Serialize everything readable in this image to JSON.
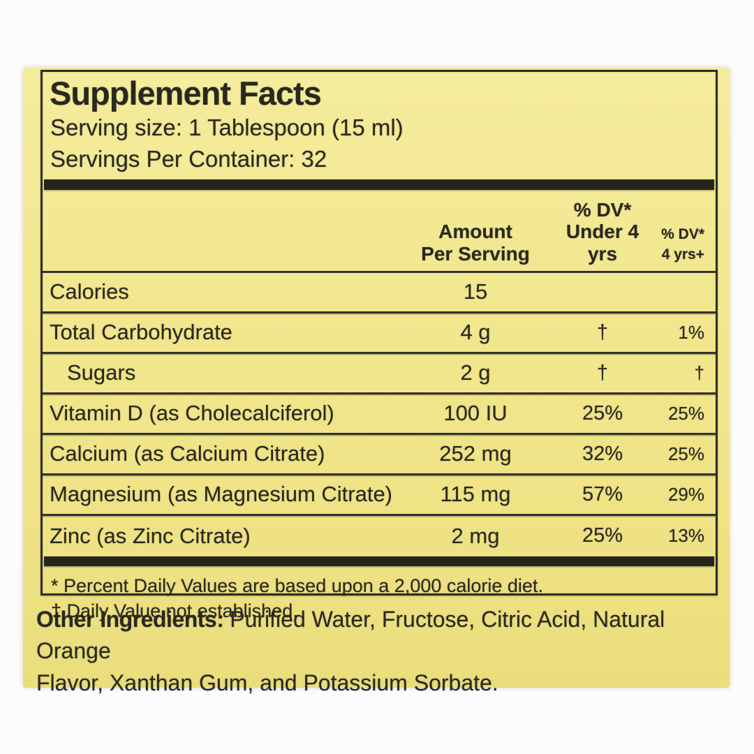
{
  "label": {
    "title": "Supplement Facts",
    "serving_size": "Serving size: 1 Tablespoon (15 ml)",
    "servings_per_container": "Servings Per Container: 32",
    "columns": {
      "amount_line1": "Amount",
      "amount_line2": "Per Serving",
      "dv_under4_line1": "% DV*",
      "dv_under4_line2": "Under 4 yrs",
      "dv_4plus_line1": "% DV*",
      "dv_4plus_line2": "4 yrs+"
    },
    "rows": [
      {
        "name": "Calories",
        "amount": "15",
        "dv_under4": "",
        "dv_4plus": "",
        "indent": false
      },
      {
        "name": "Total Carbohydrate",
        "amount": "4 g",
        "dv_under4": "†",
        "dv_4plus": "1%",
        "indent": false
      },
      {
        "name": "Sugars",
        "amount": "2 g",
        "dv_under4": "†",
        "dv_4plus": "†",
        "indent": true
      },
      {
        "name": "Vitamin D (as Cholecalciferol)",
        "amount": "100 IU",
        "dv_under4": "25%",
        "dv_4plus": "25%",
        "indent": false
      },
      {
        "name": "Calcium (as Calcium Citrate)",
        "amount": "252 mg",
        "dv_under4": "32%",
        "dv_4plus": "25%",
        "indent": false
      },
      {
        "name": "Magnesium (as Magnesium Citrate)",
        "amount": "115 mg",
        "dv_under4": "57%",
        "dv_4plus": "29%",
        "indent": false
      },
      {
        "name": "Zinc (as Zinc Citrate)",
        "amount": "2 mg",
        "dv_under4": "25%",
        "dv_4plus": "13%",
        "indent": false
      }
    ],
    "footnotes": [
      "* Percent Daily Values are based upon a 2,000 calorie diet.",
      "† Daily Value not established."
    ],
    "other_ingredients_label": "Other Ingredients:",
    "other_ingredients_line1": " Purified Water, Fructose, Citric Acid, Natural Orange",
    "other_ingredients_line2": "Flavor, Xanthan Gum, and Potassium Sorbate.",
    "colors": {
      "label_yellow": "#f2e78e",
      "ink": "#29281f"
    }
  }
}
